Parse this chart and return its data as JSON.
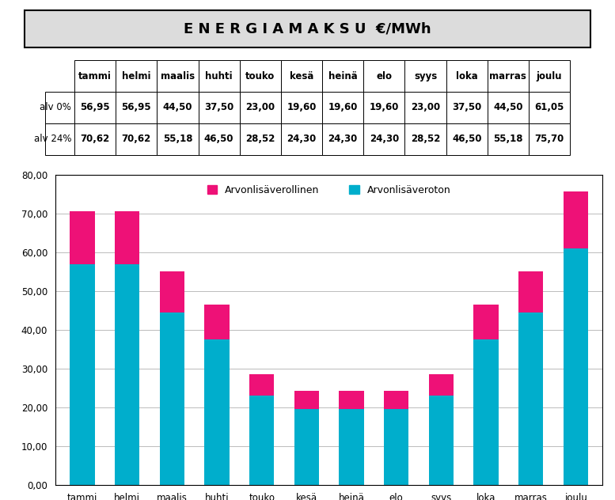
{
  "title": "E N E R G I A M A K S U  €/MWh",
  "months": [
    "tammi",
    "helmi",
    "maalis",
    "huhti",
    "touko",
    "kesä",
    "heinä",
    "elo",
    "syys",
    "loka",
    "marras",
    "joulu"
  ],
  "alv0": [
    56.95,
    56.95,
    44.5,
    37.5,
    23.0,
    19.6,
    19.6,
    19.6,
    23.0,
    37.5,
    44.5,
    61.05
  ],
  "alv24": [
    70.62,
    70.62,
    55.18,
    46.5,
    28.52,
    24.3,
    24.3,
    24.3,
    28.52,
    46.5,
    55.18,
    75.7
  ],
  "color_blue": "#00AECC",
  "color_pink": "#EE1177",
  "legend_vat": "Arvonlisäverollinen",
  "legend_novat": "Arvonlisäveroton",
  "row_label0": "alv 0%",
  "row_label24": "alv 24%",
  "ylim": [
    0,
    80
  ],
  "yticks": [
    0,
    10,
    20,
    30,
    40,
    50,
    60,
    70,
    80
  ],
  "bg_color": "#FFFFFF",
  "title_bg": "#DCDCDC"
}
